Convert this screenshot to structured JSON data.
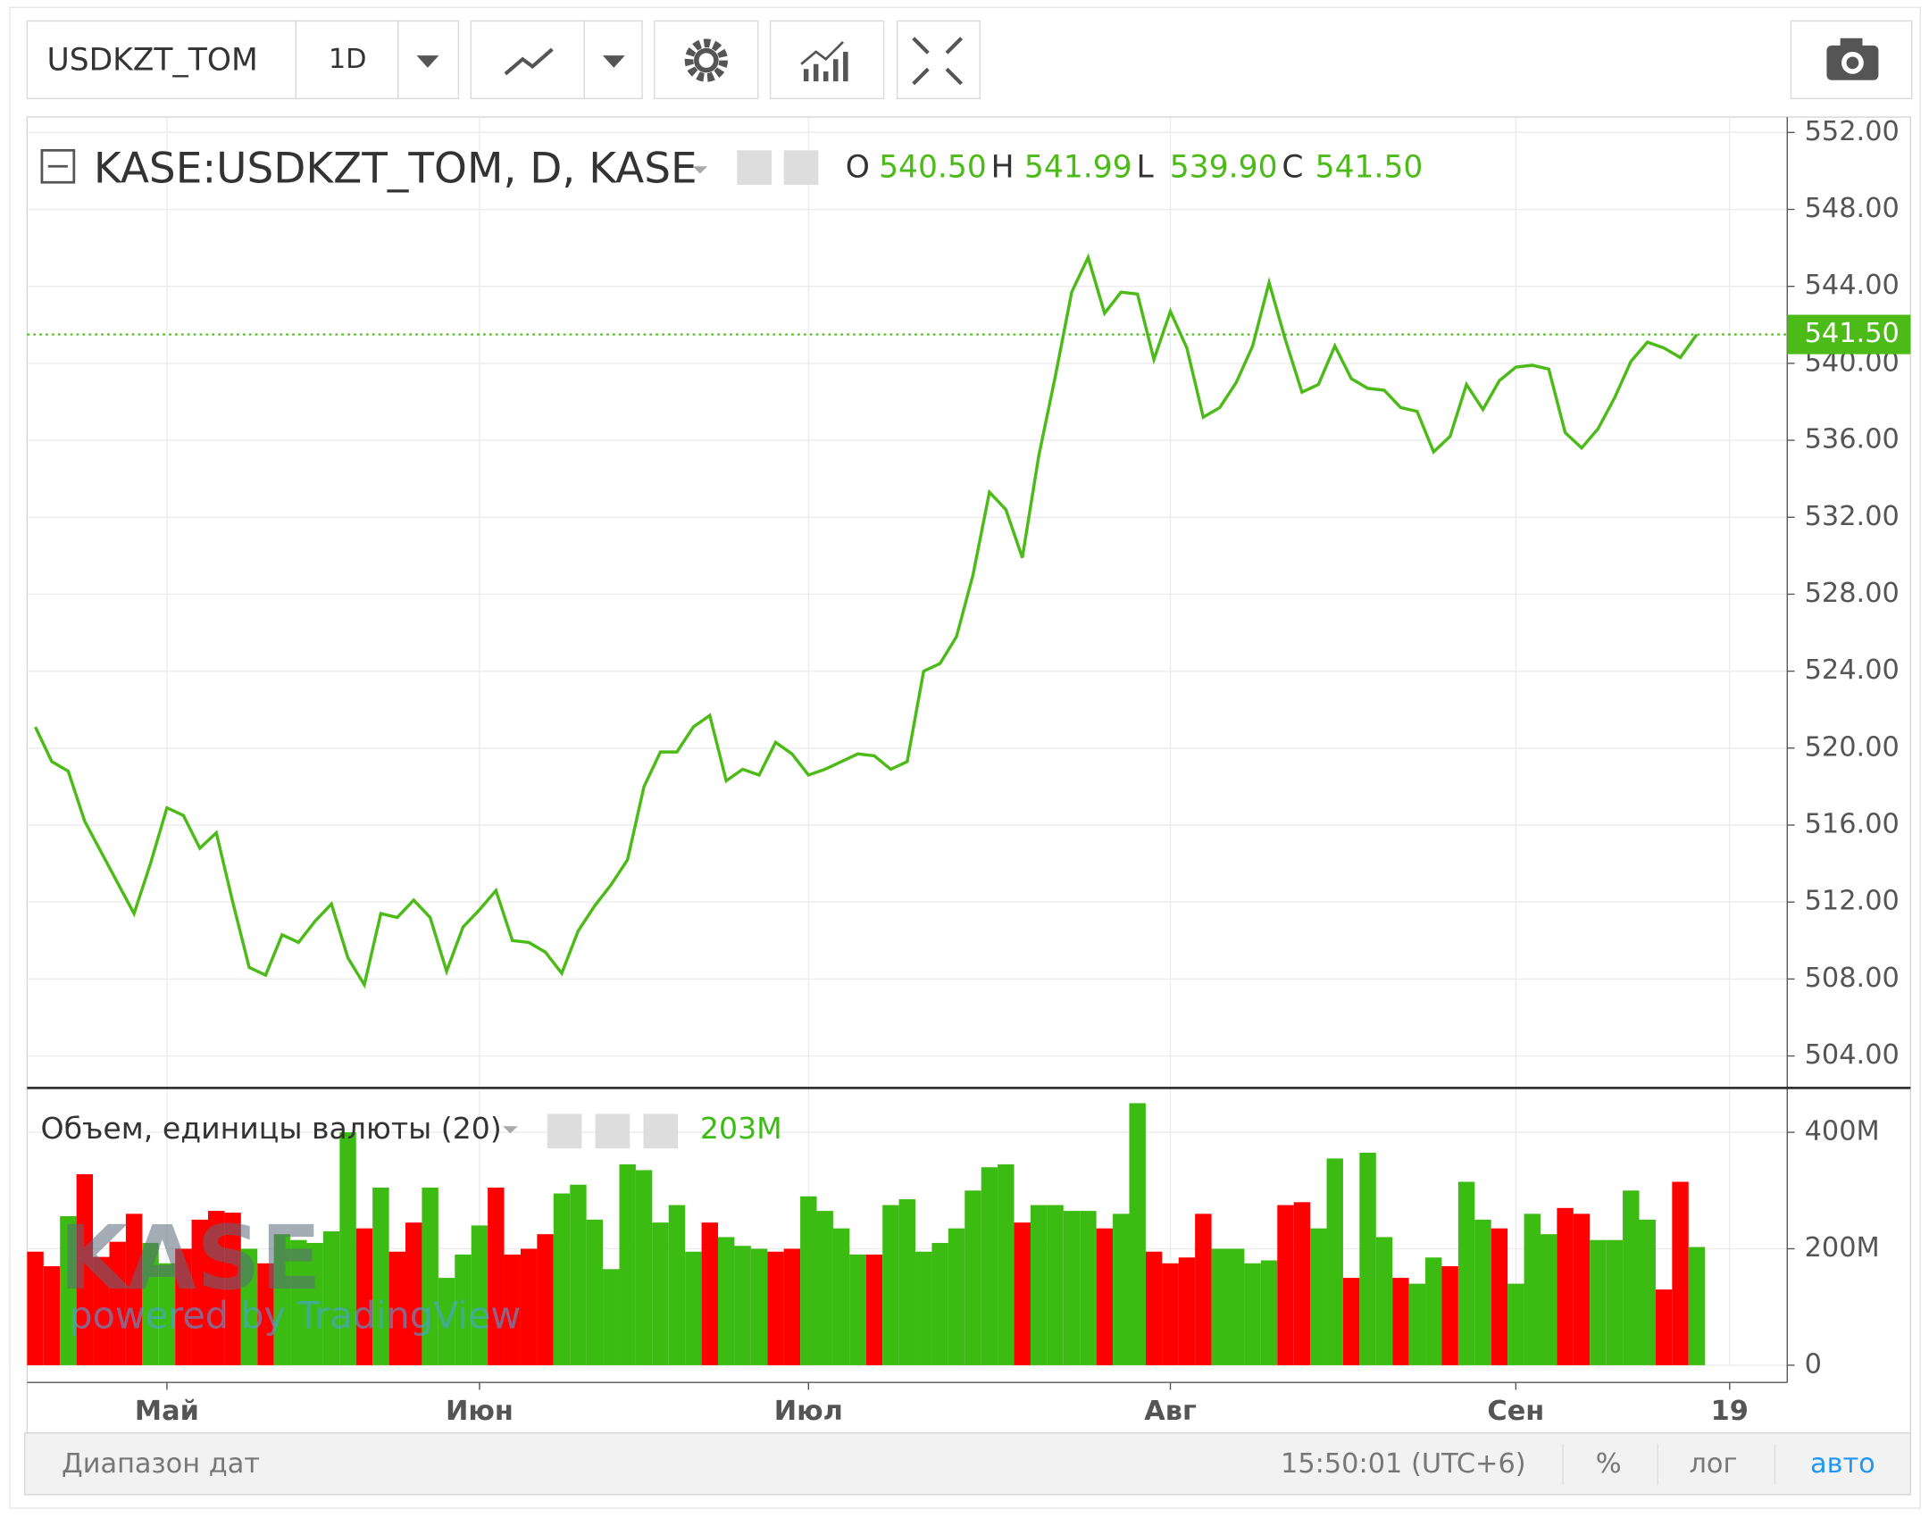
{
  "toolbar": {
    "symbol": "USDKZT_TOM",
    "interval": "1D"
  },
  "watermark": {
    "logo": "KASE",
    "powered": "powered by TradingView"
  },
  "footer": {
    "range": "Диапазон дат",
    "time": "15:50:01 (UTC+6)",
    "percent": "%",
    "log": "лог",
    "auto": "авто"
  },
  "chart_data": [
    {
      "type": "line",
      "title": "KASE:USDKZT_TOM, D, KASE",
      "color": "#4cbb17",
      "grid": true,
      "ohlc": [
        {
          "label": "O",
          "value": "540.50"
        },
        {
          "label": "H",
          "value": "541.99"
        },
        {
          "label": "L",
          "value": "539.90"
        },
        {
          "label": "C",
          "value": "541.50"
        }
      ],
      "last_value": {
        "value": 541.5,
        "label": "541.50"
      },
      "ylim": [
        502.4,
        552.8
      ],
      "yticks": [
        {
          "value": 504,
          "label": "504.00"
        },
        {
          "value": 508,
          "label": "508.00"
        },
        {
          "value": 512,
          "label": "512.00"
        },
        {
          "value": 516,
          "label": "516.00"
        },
        {
          "value": 520,
          "label": "520.00"
        },
        {
          "value": 524,
          "label": "524.00"
        },
        {
          "value": 528,
          "label": "528.00"
        },
        {
          "value": 532,
          "label": "532.00"
        },
        {
          "value": 536,
          "label": "536.00"
        },
        {
          "value": 540,
          "label": "540.00"
        },
        {
          "value": 544,
          "label": "544.00"
        },
        {
          "value": 548,
          "label": "548.00"
        },
        {
          "value": 552,
          "label": "552.00"
        }
      ],
      "values": [
        521.1,
        519.3,
        518.8,
        516.2,
        514.6,
        513.0,
        511.4,
        514.0,
        516.9,
        516.5,
        514.8,
        515.6,
        512.0,
        508.6,
        508.2,
        510.3,
        509.9,
        511.0,
        511.9,
        509.1,
        507.7,
        511.4,
        511.2,
        512.1,
        511.2,
        508.4,
        510.7,
        511.6,
        512.6,
        510.0,
        509.9,
        509.4,
        508.3,
        510.5,
        511.8,
        512.9,
        514.2,
        518.0,
        519.8,
        519.8,
        521.1,
        521.7,
        518.3,
        518.9,
        518.6,
        520.3,
        519.7,
        518.6,
        518.9,
        519.3,
        519.7,
        519.6,
        518.9,
        519.3,
        524.0,
        524.4,
        525.8,
        529.0,
        533.3,
        532.4,
        529.9,
        535.2,
        539.3,
        543.7,
        545.5,
        542.6,
        543.7,
        543.6,
        540.2,
        542.7,
        540.8,
        537.2,
        537.7,
        539.0,
        540.9,
        544.2,
        541.2,
        538.5,
        538.9,
        540.9,
        539.2,
        538.7,
        538.6,
        537.7,
        537.5,
        535.4,
        536.2,
        538.9,
        537.6,
        539.1,
        539.8,
        539.9,
        539.7,
        536.4,
        535.6,
        536.6,
        538.2,
        540.1,
        541.1,
        540.8,
        540.3,
        541.5,
        null,
        null,
        null,
        null,
        null
      ]
    },
    {
      "type": "bar",
      "title": "Объем, единицы валюты (20)",
      "last_label": "203M",
      "grid": true,
      "ylim": [
        0,
        474
      ],
      "yticks": [
        0,
        {
          "value": 200,
          "label": "200M"
        },
        {
          "value": 400,
          "label": "400M"
        }
      ],
      "categories": [
        null,
        null,
        null,
        null,
        null,
        null,
        null,
        null,
        "Май",
        null,
        null,
        null,
        null,
        null,
        null,
        null,
        null,
        null,
        null,
        null,
        null,
        null,
        null,
        null,
        null,
        null,
        null,
        "Июн",
        null,
        null,
        null,
        null,
        null,
        null,
        null,
        null,
        null,
        null,
        null,
        null,
        null,
        null,
        null,
        null,
        null,
        null,
        null,
        "Июл",
        null,
        null,
        null,
        null,
        null,
        null,
        null,
        null,
        null,
        null,
        null,
        null,
        null,
        null,
        null,
        null,
        null,
        null,
        null,
        null,
        null,
        "Авг",
        null,
        null,
        null,
        null,
        null,
        null,
        null,
        null,
        null,
        null,
        null,
        null,
        null,
        null,
        null,
        null,
        null,
        null,
        null,
        null,
        "Сен",
        null,
        null,
        null,
        null,
        null,
        null,
        null,
        null,
        null,
        null,
        null,
        null,
        "19",
        null,
        null,
        null
      ],
      "series": [
        {
          "name": "Объем",
          "colors": [
            "#ff0000",
            "#ff0000",
            "#3cbb12",
            "#ff0000",
            "#ff0000",
            "#ff0000",
            "#ff0000",
            "#3cbb12",
            "#3cbb12",
            "#ff0000",
            "#ff0000",
            "#ff0000",
            "#ff0000",
            "#3cbb12",
            "#ff0000",
            "#3cbb12",
            "#3cbb12",
            "#3cbb12",
            "#3cbb12",
            "#3cbb12",
            "#ff0000",
            "#3cbb12",
            "#ff0000",
            "#ff0000",
            "#3cbb12",
            "#3cbb12",
            "#3cbb12",
            "#3cbb12",
            "#ff0000",
            "#ff0000",
            "#ff0000",
            "#ff0000",
            "#3cbb12",
            "#3cbb12",
            "#3cbb12",
            "#3cbb12",
            "#3cbb12",
            "#3cbb12",
            "#3cbb12",
            "#3cbb12",
            "#3cbb12",
            "#ff0000",
            "#3cbb12",
            "#3cbb12",
            "#3cbb12",
            "#ff0000",
            "#ff0000",
            "#3cbb12",
            "#3cbb12",
            "#3cbb12",
            "#3cbb12",
            "#ff0000",
            "#3cbb12",
            "#3cbb12",
            "#3cbb12",
            "#3cbb12",
            "#3cbb12",
            "#3cbb12",
            "#3cbb12",
            "#3cbb12",
            "#ff0000",
            "#3cbb12",
            "#3cbb12",
            "#3cbb12",
            "#3cbb12",
            "#ff0000",
            "#3cbb12",
            "#3cbb12",
            "#ff0000",
            "#ff0000",
            "#ff0000",
            "#ff0000",
            "#3cbb12",
            "#3cbb12",
            "#3cbb12",
            "#3cbb12",
            "#ff0000",
            "#ff0000",
            "#3cbb12",
            "#3cbb12",
            "#ff0000",
            "#3cbb12",
            "#3cbb12",
            "#ff0000",
            "#3cbb12",
            "#3cbb12",
            "#ff0000",
            "#3cbb12",
            "#3cbb12",
            "#ff0000",
            "#3cbb12",
            "#3cbb12",
            "#3cbb12",
            "#ff0000",
            "#ff0000",
            "#3cbb12",
            "#3cbb12",
            "#3cbb12",
            "#3cbb12",
            "#ff0000",
            "#ff0000",
            "#3cbb12",
            null,
            null,
            null,
            null,
            null
          ],
          "values": [
            195,
            170,
            256,
            328,
            186,
            212,
            260,
            210,
            175,
            200,
            250,
            265,
            262,
            200,
            175,
            225,
            215,
            210,
            230,
            400,
            235,
            305,
            195,
            245,
            305,
            150,
            190,
            240,
            305,
            190,
            200,
            225,
            295,
            310,
            250,
            165,
            345,
            335,
            245,
            275,
            195,
            245,
            220,
            205,
            200,
            195,
            200,
            290,
            265,
            235,
            190,
            190,
            275,
            285,
            195,
            210,
            235,
            300,
            340,
            345,
            245,
            275,
            275,
            265,
            265,
            235,
            260,
            450,
            195,
            175,
            185,
            260,
            200,
            200,
            175,
            180,
            275,
            280,
            235,
            355,
            150,
            365,
            220,
            150,
            140,
            185,
            170,
            315,
            250,
            235,
            140,
            260,
            225,
            270,
            260,
            215,
            215,
            300,
            250,
            130,
            315,
            203,
            null,
            null,
            null,
            null,
            null
          ]
        }
      ]
    }
  ]
}
